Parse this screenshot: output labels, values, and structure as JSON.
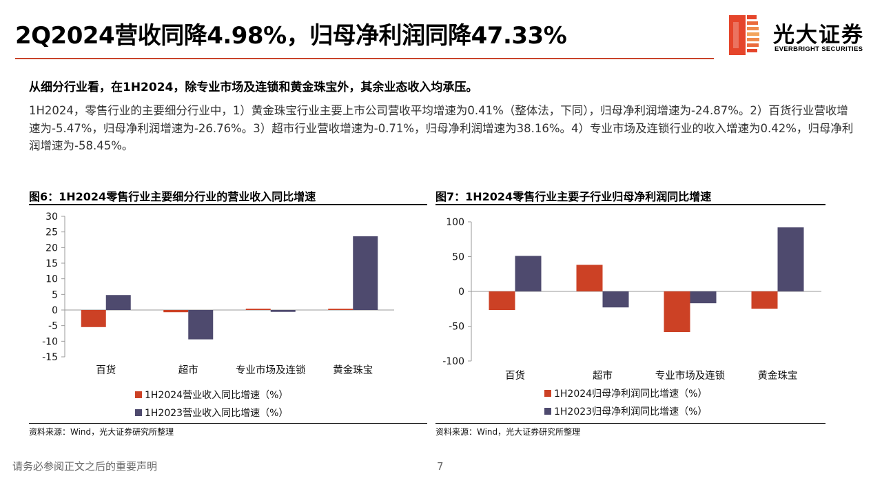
{
  "header": {
    "title": "2Q2024营收同降4.98%，归母净利润同降47.33%",
    "logo_cn": "光大证券",
    "logo_en": "EVERBRIGHT SECURITIES"
  },
  "lead": "从细分行业看，在1H2024，除专业市场及连锁和黄金珠宝外，其余业态收入均承压。",
  "paragraph": "1H2024，零售行业的主要细分行业中，1）黄金珠宝行业主要上市公司营收平均增速为0.41%（整体法，下同），归母净利润增速为-24.87%。2）百货行业营收增速为-5.47%，归母净利润增速为-26.76%。3）超市行业营收增速为-0.71%，归母净利润增速为38.16%。4）专业市场及连锁行业的收入增速为0.42%，归母净利润增速为-58.45%。",
  "colors": {
    "accent": "#c9442b",
    "series_2024": "#cc4125",
    "series_2023": "#4e4a6e"
  },
  "figures": [
    {
      "title": "图6：1H2024零售行业主要细分行业的营业收入同比增速",
      "source": "资料来源：Wind，光大证券研究所整理"
    },
    {
      "title": "图7：1H2024零售行业主要子行业归母净利润同比增速",
      "source": "资料来源：Wind，光大证券研究所整理"
    }
  ],
  "chart_data": [
    {
      "type": "bar",
      "categories": [
        "百货",
        "超市",
        "专业市场及连锁",
        "黄金珠宝"
      ],
      "series": [
        {
          "name": "1H2024营业收入同比增速（%）",
          "values": [
            -5.47,
            -0.71,
            0.42,
            0.41
          ]
        },
        {
          "name": "1H2023营业收入同比增速（%）",
          "values": [
            4.8,
            -9.4,
            -0.6,
            23.6
          ]
        }
      ],
      "ylim": [
        -15,
        30
      ],
      "yticks": [
        30,
        25,
        20,
        15,
        10,
        5,
        0,
        -5,
        -10,
        -15
      ],
      "grid": false,
      "legend": "bottom"
    },
    {
      "type": "bar",
      "categories": [
        "百货",
        "超市",
        "专业市场及连锁",
        "黄金珠宝"
      ],
      "series": [
        {
          "name": "1H2024归母净利润同比增速（%）",
          "values": [
            -26.76,
            38.16,
            -58.45,
            -24.87
          ]
        },
        {
          "name": "1H2023归母净利润同比增速（%）",
          "values": [
            51,
            -23,
            -17,
            92
          ]
        }
      ],
      "ylim": [
        -100,
        100
      ],
      "yticks": [
        100,
        50,
        0,
        -50,
        -100
      ],
      "grid": false,
      "legend": "bottom"
    }
  ],
  "footer": {
    "note": "请务必参阅正文之后的重要声明",
    "page": "7"
  }
}
